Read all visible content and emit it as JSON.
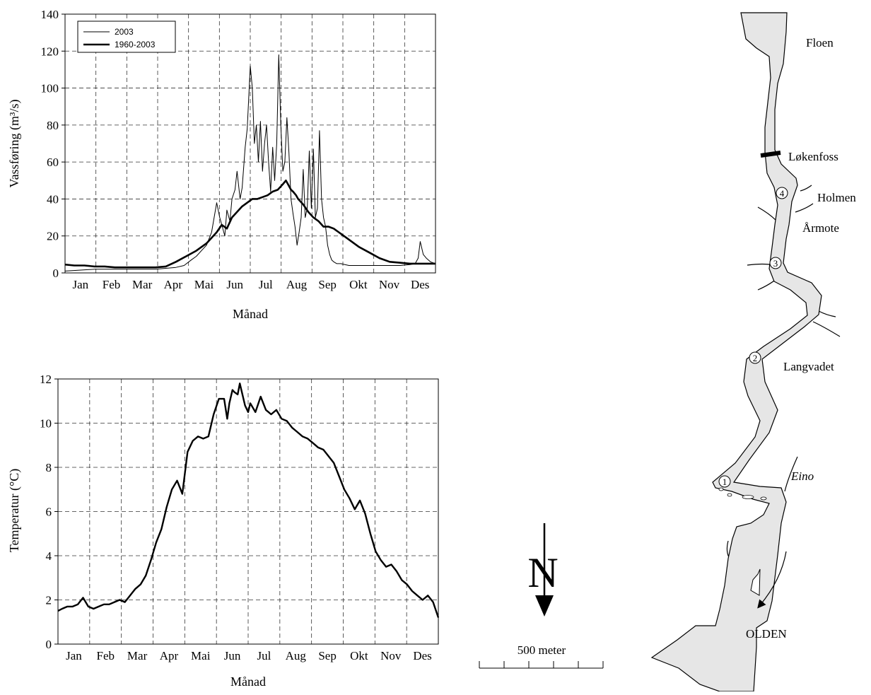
{
  "colors": {
    "line": "#000000",
    "grid": "#333333",
    "river": "#e6e6e6"
  },
  "chart_data": [
    {
      "type": "line",
      "title": "",
      "xlabel": "Månad",
      "ylabel": "Vassføring (m³/s)",
      "ylim": [
        0,
        140
      ],
      "yticks": [
        "0",
        "20",
        "40",
        "60",
        "80",
        "100",
        "120",
        "140"
      ],
      "months": [
        "Jan",
        "Feb",
        "Mar",
        "Apr",
        "Mai",
        "Jun",
        "Jul",
        "Aug",
        "Sep",
        "Okt",
        "Nov",
        "Des"
      ],
      "grid": true,
      "legend": "top-left",
      "series": [
        {
          "name": "2003",
          "x": [
            1,
            15,
            30,
            45,
            60,
            75,
            90,
            100,
            110,
            118,
            125,
            130,
            135,
            140,
            145,
            150,
            153,
            155,
            158,
            160,
            163,
            165,
            168,
            170,
            173,
            175,
            178,
            180,
            183,
            185,
            187,
            189,
            191,
            193,
            195,
            197,
            199,
            201,
            203,
            205,
            207,
            209,
            211,
            213,
            215,
            217,
            219,
            221,
            223,
            225,
            227,
            229,
            231,
            233,
            235,
            237,
            239,
            241,
            243,
            245,
            247,
            249,
            251,
            253,
            255,
            257,
            259,
            261,
            263,
            265,
            268,
            272,
            276,
            280,
            290,
            300,
            310,
            320,
            330,
            340,
            345,
            348,
            350,
            353,
            356,
            360,
            365
          ],
          "y": [
            1,
            1.5,
            2,
            2,
            2,
            2,
            2,
            2.5,
            3,
            4,
            7,
            9,
            12,
            15,
            22,
            38,
            30,
            26,
            20,
            34,
            28,
            40,
            45,
            55,
            40,
            46,
            68,
            78,
            112,
            100,
            70,
            80,
            60,
            82,
            55,
            70,
            80,
            60,
            44,
            68,
            50,
            70,
            118,
            80,
            55,
            60,
            84,
            65,
            40,
            32,
            25,
            15,
            22,
            30,
            56,
            30,
            35,
            66,
            35,
            67,
            30,
            35,
            77,
            40,
            30,
            25,
            15,
            10,
            7,
            6,
            5,
            5,
            4.5,
            4,
            4,
            4,
            4,
            4,
            4,
            4.5,
            5,
            8,
            17,
            10,
            8,
            6,
            5
          ]
        },
        {
          "name": "1960-2003",
          "x": [
            1,
            10,
            20,
            30,
            40,
            50,
            60,
            70,
            80,
            90,
            100,
            110,
            120,
            130,
            140,
            150,
            155,
            160,
            165,
            170,
            175,
            180,
            185,
            190,
            195,
            200,
            205,
            210,
            215,
            218,
            220,
            223,
            225,
            228,
            230,
            235,
            240,
            245,
            250,
            255,
            260,
            265,
            270,
            275,
            280,
            290,
            300,
            310,
            320,
            330,
            340,
            350,
            365
          ],
          "y": [
            4.5,
            4,
            4,
            3.5,
            3.5,
            3,
            3,
            3,
            3,
            3,
            3.5,
            6,
            9,
            12,
            16,
            22,
            26,
            24,
            30,
            33,
            36,
            38,
            40,
            40,
            41,
            42,
            44,
            45,
            48,
            50,
            48,
            45,
            44,
            42,
            40,
            37,
            33,
            30,
            28,
            25,
            25,
            24,
            22,
            20,
            18,
            14,
            11,
            8,
            6,
            5.5,
            5,
            5,
            5
          ]
        }
      ]
    },
    {
      "type": "line",
      "title": "",
      "xlabel": "Månad",
      "ylabel": "Temperatur (°C)",
      "ylim": [
        0,
        12
      ],
      "yticks": [
        "0",
        "2",
        "4",
        "6",
        "8",
        "10",
        "12"
      ],
      "months": [
        "Jan",
        "Feb",
        "Mar",
        "Apr",
        "Mai",
        "Jun",
        "Jul",
        "Aug",
        "Sep",
        "Okt",
        "Nov",
        "Des"
      ],
      "grid": true,
      "series": [
        {
          "name": "",
          "x": [
            1,
            5,
            10,
            15,
            20,
            25,
            30,
            35,
            40,
            45,
            50,
            55,
            60,
            65,
            70,
            75,
            80,
            85,
            90,
            95,
            100,
            105,
            110,
            115,
            120,
            125,
            130,
            135,
            140,
            145,
            150,
            155,
            160,
            163,
            165,
            168,
            170,
            173,
            175,
            180,
            183,
            185,
            190,
            195,
            200,
            205,
            210,
            215,
            220,
            225,
            230,
            235,
            240,
            245,
            250,
            255,
            260,
            265,
            270,
            275,
            280,
            285,
            290,
            295,
            300,
            305,
            310,
            315,
            320,
            325,
            330,
            335,
            340,
            345,
            350,
            355,
            360,
            365
          ],
          "y": [
            1.5,
            1.6,
            1.7,
            1.7,
            1.8,
            2.1,
            1.7,
            1.6,
            1.7,
            1.8,
            1.8,
            1.9,
            2.0,
            1.9,
            2.2,
            2.5,
            2.7,
            3.1,
            3.8,
            4.6,
            5.2,
            6.2,
            7.0,
            7.4,
            6.8,
            8.7,
            9.2,
            9.4,
            9.3,
            9.4,
            10.4,
            11.1,
            11.1,
            10.2,
            10.9,
            11.5,
            11.4,
            11.3,
            11.8,
            10.8,
            10.5,
            10.9,
            10.5,
            11.2,
            10.6,
            10.4,
            10.6,
            10.2,
            10.1,
            9.8,
            9.6,
            9.4,
            9.3,
            9.1,
            8.9,
            8.8,
            8.5,
            8.2,
            7.6,
            7.0,
            6.6,
            6.1,
            6.5,
            5.9,
            5.0,
            4.2,
            3.8,
            3.5,
            3.6,
            3.3,
            2.9,
            2.7,
            2.4,
            2.2,
            2.0,
            2.2,
            1.9,
            1.2
          ]
        }
      ]
    }
  ],
  "map": {
    "north_label": "N",
    "scale_label": "500 meter",
    "places": [
      "Floen",
      "Løkenfoss",
      "Holmen",
      "Årmote",
      "Langvadet",
      "Eino",
      "OLDEN"
    ],
    "stations": [
      "1",
      "2",
      "3",
      "4"
    ]
  }
}
